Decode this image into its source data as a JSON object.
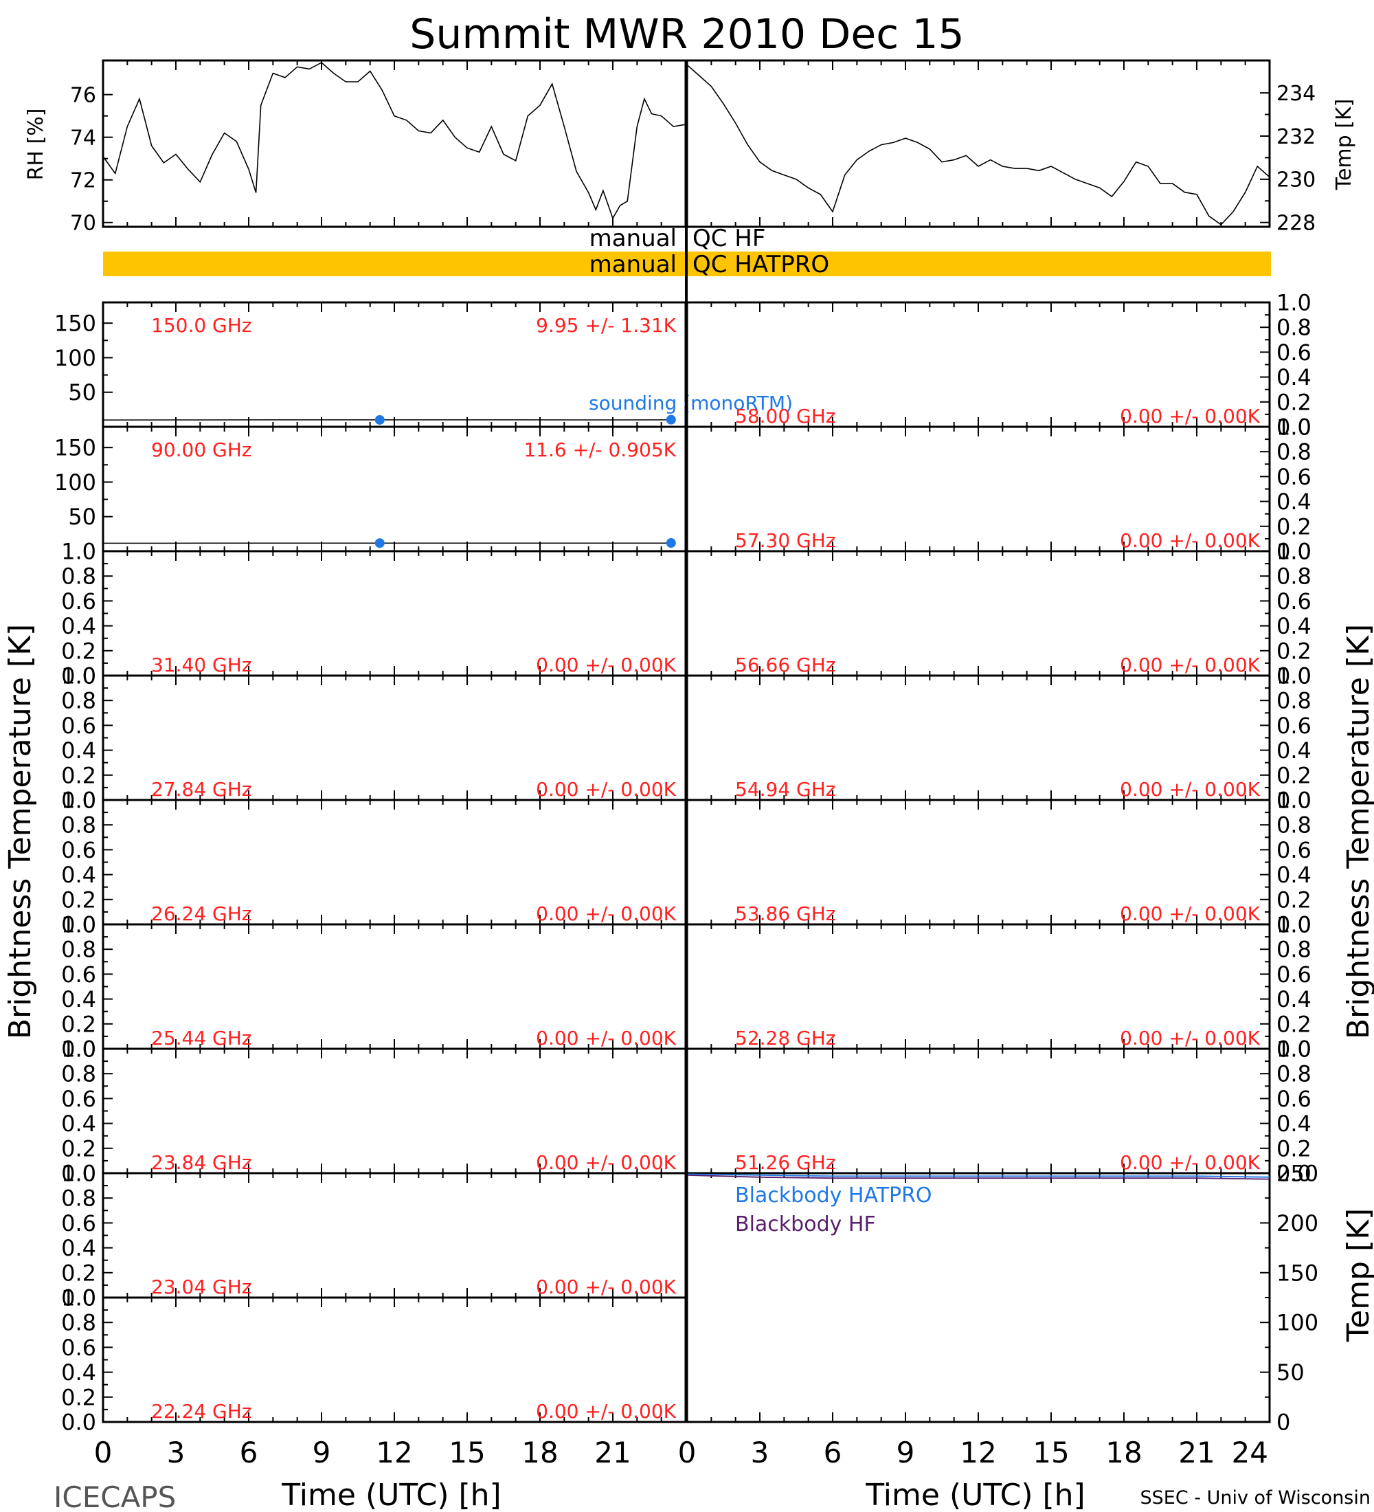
{
  "title": "Summit MWR 2010 Dec 15",
  "footer_left": "ICECAPS",
  "footer_right": "SSEC - Univ of Wisconsin",
  "colors": {
    "qc_bar": "#FFC400",
    "freq_label": "#FF2020",
    "sounding": "#1E78E6",
    "blackbody_hatpro": "#1E78E6",
    "blackbody_hf": "#5A1E6E",
    "axis": "#000000"
  },
  "qc": {
    "hf_label": "manual QC HF",
    "hatpro_label": "manual QC HATPRO"
  },
  "chart_data": [
    {
      "id": "rh",
      "type": "line",
      "ylabel": "RH [%]",
      "ylim": [
        69.8,
        77.6
      ],
      "yticks": [
        "70",
        "72",
        "74",
        "76"
      ],
      "x": [
        0,
        0.5,
        1,
        1.5,
        2,
        2.5,
        3,
        3.5,
        4,
        4.5,
        5,
        5.5,
        6,
        6.3,
        6.5,
        7,
        7.5,
        8,
        8.5,
        9,
        9.5,
        10,
        10.5,
        11,
        11.5,
        12,
        12.5,
        13,
        13.5,
        14,
        14.5,
        15,
        15.5,
        16,
        16.5,
        17,
        17.5,
        18,
        18.5,
        19,
        19.5,
        20,
        20.3,
        20.6,
        21,
        21.3,
        21.6,
        22,
        22.3,
        22.6,
        23,
        23.5,
        24
      ],
      "y": [
        73.1,
        72.3,
        74.5,
        75.8,
        73.6,
        72.8,
        73.2,
        72.5,
        71.9,
        73.2,
        74.2,
        73.8,
        72.5,
        71.4,
        75.5,
        77.0,
        76.8,
        77.3,
        77.2,
        77.5,
        77.0,
        76.6,
        76.6,
        77.1,
        76.2,
        75.0,
        74.8,
        74.3,
        74.2,
        74.8,
        74.0,
        73.5,
        73.3,
        74.5,
        73.2,
        72.9,
        75.0,
        75.5,
        76.5,
        74.5,
        72.4,
        71.4,
        70.6,
        71.5,
        70.2,
        70.8,
        71.0,
        74.5,
        75.8,
        75.1,
        75.0,
        74.5,
        74.6
      ]
    },
    {
      "id": "temp",
      "type": "line",
      "ylabel": "Temp [K]",
      "ylim": [
        227.8,
        235.5
      ],
      "yticks": [
        "228",
        "230",
        "232",
        "234"
      ],
      "x": [
        0,
        0.5,
        1,
        1.5,
        2,
        2.5,
        3,
        3.5,
        4,
        4.5,
        5,
        5.5,
        6,
        6.5,
        7,
        7.5,
        8,
        8.5,
        9,
        9.5,
        10,
        10.5,
        11,
        11.5,
        12,
        12.5,
        13,
        13.5,
        14,
        14.5,
        15,
        15.5,
        16,
        16.5,
        17,
        17.5,
        18,
        18.5,
        19,
        19.5,
        20,
        20.5,
        21,
        21.5,
        22,
        22.5,
        23,
        23.5,
        24
      ],
      "y": [
        235.3,
        234.8,
        234.3,
        233.5,
        232.6,
        231.6,
        230.8,
        230.4,
        230.2,
        230.0,
        229.6,
        229.3,
        228.5,
        230.2,
        230.9,
        231.3,
        231.6,
        231.7,
        231.9,
        231.7,
        231.4,
        230.8,
        230.9,
        231.1,
        230.6,
        230.9,
        230.6,
        230.5,
        230.5,
        230.4,
        230.6,
        230.3,
        230.0,
        229.8,
        229.6,
        229.2,
        229.9,
        230.8,
        230.6,
        229.8,
        229.8,
        229.4,
        229.3,
        228.3,
        227.9,
        228.5,
        229.4,
        230.6,
        230.1
      ]
    },
    {
      "id": "bt-150",
      "type": "line",
      "freq_label": "150.0 GHz",
      "stats_label": "9.95 +/-  1.31K",
      "ylim": [
        0,
        180
      ],
      "yticks": [
        "50",
        "100",
        "150"
      ],
      "sounding_label": "sounding (monoRTM)",
      "series": [
        {
          "x": [
            0,
            4,
            8,
            12,
            16,
            20,
            23.4
          ],
          "y": [
            9.8,
            9.9,
            10.0,
            10.0,
            10.0,
            9.9,
            10.0
          ]
        },
        {
          "x": [
            11.4,
            23.4
          ],
          "y": [
            10.0,
            10.3
          ],
          "role": "sounding"
        }
      ]
    },
    {
      "id": "bt-90",
      "type": "line",
      "freq_label": "90.00 GHz",
      "stats_label": "11.6 +/- 0.905K",
      "ylim": [
        0,
        180
      ],
      "yticks": [
        "50",
        "100",
        "150"
      ],
      "series": [
        {
          "x": [
            0,
            4,
            8,
            12,
            16,
            20,
            23.4
          ],
          "y": [
            11.5,
            11.6,
            11.6,
            11.6,
            11.7,
            11.6,
            11.6
          ]
        },
        {
          "x": [
            11.4,
            23.4
          ],
          "y": [
            11.7,
            11.9
          ],
          "role": "sounding"
        }
      ]
    },
    {
      "id": "bt-31.40",
      "type": "line",
      "freq_label": "31.40 GHz",
      "stats_label": "0.00 +/-  0.00K",
      "ylim": [
        0,
        1
      ],
      "yticks": [
        "0.0",
        "0.2",
        "0.4",
        "0.6",
        "0.8",
        "1.0"
      ],
      "series": []
    },
    {
      "id": "bt-27.84",
      "type": "line",
      "freq_label": "27.84 GHz",
      "stats_label": "0.00 +/-  0.00K",
      "ylim": [
        0,
        1
      ],
      "yticks": [
        "0.0",
        "0.2",
        "0.4",
        "0.6",
        "0.8",
        "1.0"
      ],
      "series": []
    },
    {
      "id": "bt-26.24",
      "type": "line",
      "freq_label": "26.24 GHz",
      "stats_label": "0.00 +/-  0.00K",
      "ylim": [
        0,
        1
      ],
      "yticks": [
        "0.0",
        "0.2",
        "0.4",
        "0.6",
        "0.8",
        "1.0"
      ],
      "series": []
    },
    {
      "id": "bt-25.44",
      "type": "line",
      "freq_label": "25.44 GHz",
      "stats_label": "0.00 +/-  0.00K",
      "ylim": [
        0,
        1
      ],
      "yticks": [
        "0.0",
        "0.2",
        "0.4",
        "0.6",
        "0.8",
        "1.0"
      ],
      "series": []
    },
    {
      "id": "bt-23.84",
      "type": "line",
      "freq_label": "23.84 GHz",
      "stats_label": "0.00 +/-  0.00K",
      "ylim": [
        0,
        1
      ],
      "yticks": [
        "0.0",
        "0.2",
        "0.4",
        "0.6",
        "0.8",
        "1.0"
      ],
      "series": []
    },
    {
      "id": "bt-23.04",
      "type": "line",
      "freq_label": "23.04 GHz",
      "stats_label": "0.00 +/-  0.00K",
      "ylim": [
        0,
        1
      ],
      "yticks": [
        "0.0",
        "0.2",
        "0.4",
        "0.6",
        "0.8",
        "1.0"
      ],
      "series": []
    },
    {
      "id": "bt-22.24",
      "type": "line",
      "freq_label": "22.24 GHz",
      "stats_label": "0.00 +/-  0.00K",
      "ylim": [
        0,
        1
      ],
      "yticks": [
        "0.0",
        "0.2",
        "0.4",
        "0.6",
        "0.8",
        "1.0"
      ],
      "series": []
    },
    {
      "id": "bt-58.00",
      "type": "line",
      "freq_label": "58.00 GHz",
      "stats_label": "0.00 +/-  0.00K",
      "ylim": [
        0,
        1
      ],
      "yticks": [
        "0.0",
        "0.2",
        "0.4",
        "0.6",
        "0.8",
        "1.0"
      ],
      "series": []
    },
    {
      "id": "bt-57.30",
      "type": "line",
      "freq_label": "57.30 GHz",
      "stats_label": "0.00 +/-  0.00K",
      "ylim": [
        0,
        1
      ],
      "yticks": [
        "0.0",
        "0.2",
        "0.4",
        "0.6",
        "0.8",
        "1.0"
      ],
      "series": []
    },
    {
      "id": "bt-56.66",
      "type": "line",
      "freq_label": "56.66 GHz",
      "stats_label": "0.00 +/-  0.00K",
      "ylim": [
        0,
        1
      ],
      "yticks": [
        "0.0",
        "0.2",
        "0.4",
        "0.6",
        "0.8",
        "1.0"
      ],
      "series": []
    },
    {
      "id": "bt-54.94",
      "type": "line",
      "freq_label": "54.94 GHz",
      "stats_label": "0.00 +/-  0.00K",
      "ylim": [
        0,
        1
      ],
      "yticks": [
        "0.0",
        "0.2",
        "0.4",
        "0.6",
        "0.8",
        "1.0"
      ],
      "series": []
    },
    {
      "id": "bt-53.86",
      "type": "line",
      "freq_label": "53.86 GHz",
      "stats_label": "0.00 +/-  0.00K",
      "ylim": [
        0,
        1
      ],
      "yticks": [
        "0.0",
        "0.2",
        "0.4",
        "0.6",
        "0.8",
        "1.0"
      ],
      "series": []
    },
    {
      "id": "bt-52.28",
      "type": "line",
      "freq_label": "52.28 GHz",
      "stats_label": "0.00 +/-  0.00K",
      "ylim": [
        0,
        1
      ],
      "yticks": [
        "0.0",
        "0.2",
        "0.4",
        "0.6",
        "0.8",
        "1.0"
      ],
      "series": []
    },
    {
      "id": "bt-51.26",
      "type": "line",
      "freq_label": "51.26 GHz",
      "stats_label": "0.00 +/-  0.00K",
      "ylim": [
        0,
        1
      ],
      "yticks": [
        "0.0",
        "0.2",
        "0.4",
        "0.6",
        "0.8",
        "1.0"
      ],
      "series": []
    },
    {
      "id": "blackbody",
      "type": "line",
      "ylabel": "Temp [K]",
      "ylim": [
        0,
        250
      ],
      "yticks": [
        "0",
        "50",
        "100",
        "150",
        "200",
        "250"
      ],
      "series": [
        {
          "name": "Blackbody HATPRO",
          "x": [
            0,
            3,
            6,
            9,
            12,
            15,
            18,
            21,
            24
          ],
          "y": [
            249,
            248,
            247,
            247,
            247,
            247,
            247,
            247,
            246
          ]
        },
        {
          "name": "Blackbody HF",
          "x": [
            0,
            3,
            6,
            9,
            12,
            15,
            18,
            21,
            24
          ],
          "y": [
            248,
            246,
            245,
            245,
            245,
            245,
            245,
            245,
            244
          ]
        }
      ]
    }
  ],
  "ylabel_bt": "Brightness Temperature [K]",
  "xaxis": {
    "label": "Time (UTC) [h]",
    "range": [
      0,
      24
    ],
    "ticks_left": [
      "0",
      "3",
      "6",
      "9",
      "12",
      "15",
      "18",
      "21"
    ],
    "ticks_right": [
      "0",
      "3",
      "6",
      "9",
      "12",
      "15",
      "18",
      "21",
      "24"
    ]
  }
}
